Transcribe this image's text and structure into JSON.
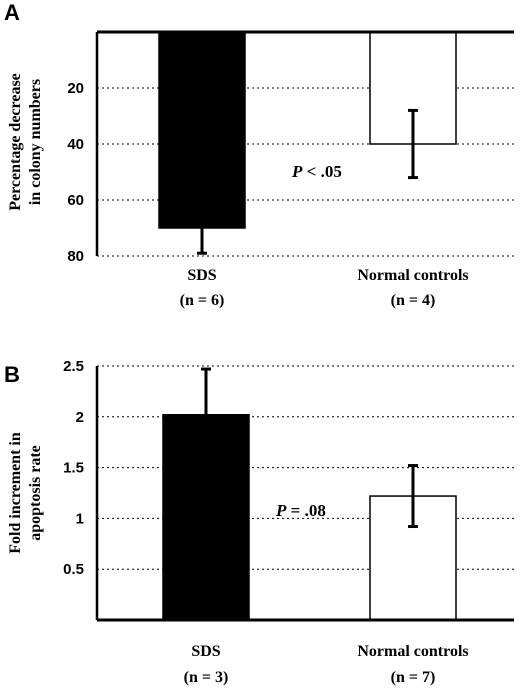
{
  "chart_data": [
    {
      "type": "bar",
      "panel": "A",
      "ylabel": [
        "Percentage decrease",
        "in colony numbers"
      ],
      "inverted": true,
      "ylim": [
        0,
        80
      ],
      "yticks": [
        "20",
        "40",
        "60",
        "80"
      ],
      "grid": true,
      "categories": [
        {
          "name": "SDS",
          "n": "(n = 6)"
        },
        {
          "name": "Normal controls",
          "n": "(n = 4)"
        }
      ],
      "values": [
        70,
        40
      ],
      "errors": [
        9,
        12
      ],
      "fills": [
        "#000000",
        "#ffffff"
      ],
      "annotation": {
        "p": "P",
        "rest": " < .05"
      }
    },
    {
      "type": "bar",
      "panel": "B",
      "ylabel": [
        "Fold increment in",
        "apoptosis rate"
      ],
      "inverted": false,
      "ylim": [
        0,
        2.5
      ],
      "yticks": [
        "0.5",
        "1",
        "1.5",
        "2",
        "2.5"
      ],
      "grid": true,
      "categories": [
        {
          "name": "SDS",
          "n": "(n = 3)"
        },
        {
          "name": "Normal controls",
          "n": "(n = 7)"
        }
      ],
      "values": [
        2.02,
        1.22
      ],
      "errors": [
        0.45,
        0.3
      ],
      "fills": [
        "#000000",
        "#ffffff"
      ],
      "annotation": {
        "p": "P",
        "rest": " = .08"
      }
    }
  ]
}
